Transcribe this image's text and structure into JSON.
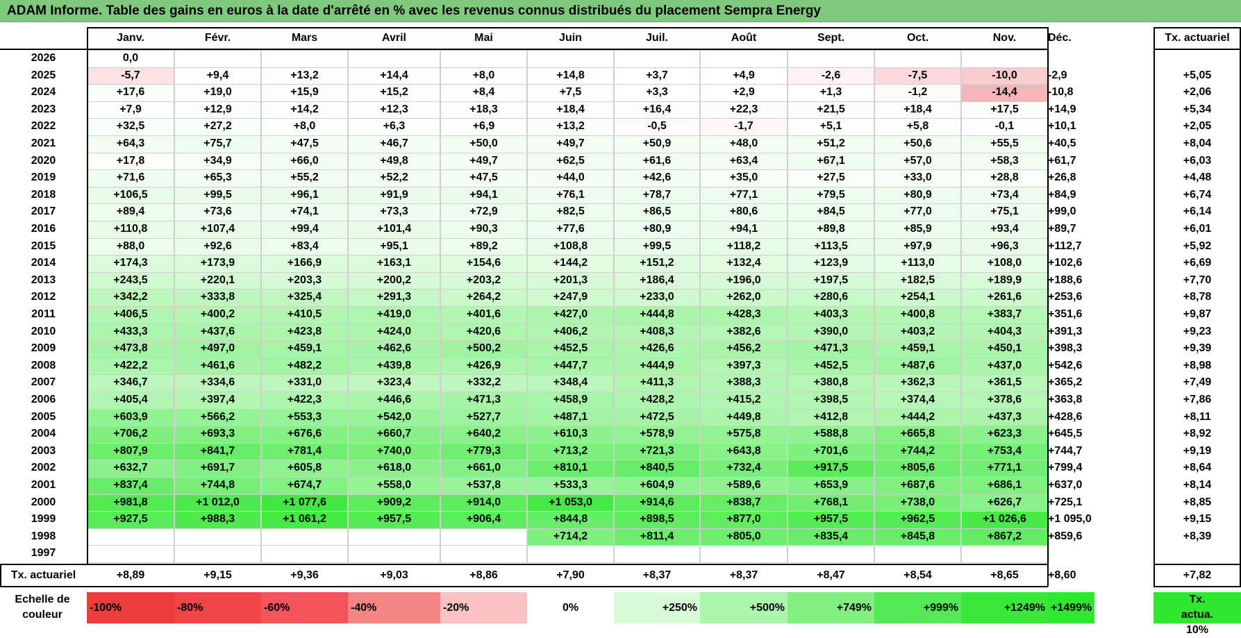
{
  "title": "ADAM Informe. Table des gains en euros à la date d'arrêté en % avec les revenus connus distribués du placement Sempra Energy",
  "chart_data": {
    "type": "heatmap",
    "title": "ADAM Informe. Table des gains en euros à la date d'arrêté en % avec les revenus connus distribués du placement Sempra Energy",
    "columns": [
      "Janv.",
      "Févr.",
      "Mars",
      "Avril",
      "Mai",
      "Juin",
      "Juil.",
      "Août",
      "Sept.",
      "Oct.",
      "Nov.",
      "Déc."
    ],
    "rate_header": "Tx. actuariel",
    "rows": [
      {
        "year": "2026",
        "cells": [
          "0,0",
          "",
          "",
          "",
          "",
          "",
          "",
          "",
          "",
          "",
          "",
          ""
        ],
        "rate": ""
      },
      {
        "year": "2025",
        "cells": [
          "-5,7",
          "+9,4",
          "+13,2",
          "+14,4",
          "+8,0",
          "+14,8",
          "+3,7",
          "+4,9",
          "-2,6",
          "-7,5",
          "-10,0",
          "-2,9"
        ],
        "rate": "+5,05"
      },
      {
        "year": "2024",
        "cells": [
          "+17,6",
          "+19,0",
          "+15,9",
          "+15,2",
          "+8,4",
          "+7,5",
          "+3,3",
          "+2,9",
          "+1,3",
          "-1,2",
          "-14,4",
          "-10,8"
        ],
        "rate": "+2,06"
      },
      {
        "year": "2023",
        "cells": [
          "+7,9",
          "+12,9",
          "+14,2",
          "+12,3",
          "+18,3",
          "+18,4",
          "+16,4",
          "+22,3",
          "+21,5",
          "+18,4",
          "+17,5",
          "+14,9"
        ],
        "rate": "+5,34"
      },
      {
        "year": "2022",
        "cells": [
          "+32,5",
          "+27,2",
          "+8,0",
          "+6,3",
          "+6,9",
          "+13,2",
          "-0,5",
          "-1,7",
          "+5,1",
          "+5,8",
          "-0,1",
          "+10,1"
        ],
        "rate": "+2,05"
      },
      {
        "year": "2021",
        "cells": [
          "+64,3",
          "+75,7",
          "+47,5",
          "+46,7",
          "+50,0",
          "+49,7",
          "+50,9",
          "+48,0",
          "+51,2",
          "+50,6",
          "+55,5",
          "+40,5"
        ],
        "rate": "+8,04"
      },
      {
        "year": "2020",
        "cells": [
          "+17,8",
          "+34,9",
          "+66,0",
          "+49,8",
          "+49,7",
          "+62,5",
          "+61,6",
          "+63,4",
          "+67,1",
          "+57,0",
          "+58,3",
          "+61,7"
        ],
        "rate": "+6,03"
      },
      {
        "year": "2019",
        "cells": [
          "+71,6",
          "+65,3",
          "+55,2",
          "+52,2",
          "+47,5",
          "+44,0",
          "+42,6",
          "+35,0",
          "+27,5",
          "+33,0",
          "+28,8",
          "+26,8"
        ],
        "rate": "+4,48"
      },
      {
        "year": "2018",
        "cells": [
          "+106,5",
          "+99,5",
          "+96,1",
          "+91,9",
          "+94,1",
          "+76,1",
          "+78,7",
          "+77,1",
          "+79,5",
          "+80,9",
          "+73,4",
          "+84,9"
        ],
        "rate": "+6,74"
      },
      {
        "year": "2017",
        "cells": [
          "+89,4",
          "+73,6",
          "+74,1",
          "+73,3",
          "+72,9",
          "+82,5",
          "+86,5",
          "+80,6",
          "+84,5",
          "+77,0",
          "+75,1",
          "+99,0"
        ],
        "rate": "+6,14"
      },
      {
        "year": "2016",
        "cells": [
          "+110,8",
          "+107,4",
          "+99,4",
          "+101,4",
          "+90,3",
          "+77,6",
          "+80,9",
          "+94,1",
          "+89,8",
          "+85,9",
          "+93,4",
          "+89,7"
        ],
        "rate": "+6,01"
      },
      {
        "year": "2015",
        "cells": [
          "+88,0",
          "+92,6",
          "+83,4",
          "+95,1",
          "+89,2",
          "+108,8",
          "+99,5",
          "+118,2",
          "+113,5",
          "+97,9",
          "+96,3",
          "+112,7"
        ],
        "rate": "+5,92"
      },
      {
        "year": "2014",
        "cells": [
          "+174,3",
          "+173,9",
          "+166,9",
          "+163,1",
          "+154,6",
          "+144,2",
          "+151,2",
          "+132,4",
          "+123,9",
          "+113,0",
          "+108,0",
          "+102,6"
        ],
        "rate": "+6,69"
      },
      {
        "year": "2013",
        "cells": [
          "+243,5",
          "+220,1",
          "+203,3",
          "+200,2",
          "+203,2",
          "+201,3",
          "+186,4",
          "+196,0",
          "+197,5",
          "+182,5",
          "+189,9",
          "+188,6"
        ],
        "rate": "+7,70"
      },
      {
        "year": "2012",
        "cells": [
          "+342,2",
          "+333,8",
          "+325,4",
          "+291,3",
          "+264,2",
          "+247,9",
          "+233,0",
          "+262,0",
          "+280,6",
          "+254,1",
          "+261,6",
          "+253,6"
        ],
        "rate": "+8,78"
      },
      {
        "year": "2011",
        "cells": [
          "+406,5",
          "+400,2",
          "+410,5",
          "+419,0",
          "+401,6",
          "+427,0",
          "+444,8",
          "+428,3",
          "+403,3",
          "+400,8",
          "+383,7",
          "+351,6"
        ],
        "rate": "+9,87"
      },
      {
        "year": "2010",
        "cells": [
          "+433,3",
          "+437,6",
          "+423,8",
          "+424,0",
          "+420,6",
          "+406,2",
          "+408,3",
          "+382,6",
          "+390,0",
          "+403,2",
          "+404,3",
          "+391,3"
        ],
        "rate": "+9,23"
      },
      {
        "year": "2009",
        "cells": [
          "+473,8",
          "+497,0",
          "+459,1",
          "+462,6",
          "+500,2",
          "+452,5",
          "+426,6",
          "+456,2",
          "+471,3",
          "+459,1",
          "+450,1",
          "+398,3"
        ],
        "rate": "+9,39"
      },
      {
        "year": "2008",
        "cells": [
          "+422,2",
          "+461,6",
          "+482,2",
          "+439,8",
          "+426,9",
          "+447,7",
          "+444,9",
          "+397,3",
          "+452,5",
          "+487,6",
          "+437,0",
          "+542,6"
        ],
        "rate": "+8,98"
      },
      {
        "year": "2007",
        "cells": [
          "+346,7",
          "+334,6",
          "+331,0",
          "+323,4",
          "+332,2",
          "+348,4",
          "+411,3",
          "+388,3",
          "+380,8",
          "+362,3",
          "+361,5",
          "+365,2"
        ],
        "rate": "+7,49"
      },
      {
        "year": "2006",
        "cells": [
          "+405,4",
          "+397,4",
          "+422,3",
          "+446,6",
          "+471,3",
          "+458,9",
          "+428,2",
          "+415,2",
          "+398,5",
          "+374,4",
          "+378,6",
          "+363,8"
        ],
        "rate": "+7,86"
      },
      {
        "year": "2005",
        "cells": [
          "+603,9",
          "+566,2",
          "+553,3",
          "+542,0",
          "+527,7",
          "+487,1",
          "+472,5",
          "+449,8",
          "+412,8",
          "+444,2",
          "+437,3",
          "+428,6"
        ],
        "rate": "+8,11"
      },
      {
        "year": "2004",
        "cells": [
          "+706,2",
          "+693,3",
          "+676,6",
          "+660,7",
          "+640,2",
          "+610,3",
          "+578,9",
          "+575,8",
          "+588,8",
          "+665,8",
          "+623,3",
          "+645,5"
        ],
        "rate": "+8,92"
      },
      {
        "year": "2003",
        "cells": [
          "+807,9",
          "+841,7",
          "+781,4",
          "+740,0",
          "+779,3",
          "+713,2",
          "+721,3",
          "+643,8",
          "+701,6",
          "+744,2",
          "+753,4",
          "+744,7"
        ],
        "rate": "+9,19"
      },
      {
        "year": "2002",
        "cells": [
          "+632,7",
          "+691,7",
          "+605,8",
          "+618,0",
          "+661,0",
          "+810,1",
          "+840,5",
          "+732,4",
          "+917,5",
          "+805,6",
          "+771,1",
          "+799,4"
        ],
        "rate": "+8,64"
      },
      {
        "year": "2001",
        "cells": [
          "+837,4",
          "+744,8",
          "+674,7",
          "+558,0",
          "+537,8",
          "+533,3",
          "+604,9",
          "+589,6",
          "+653,9",
          "+687,6",
          "+686,1",
          "+637,0"
        ],
        "rate": "+8,14"
      },
      {
        "year": "2000",
        "cells": [
          "+981,8",
          "+1 012,0",
          "+1 077,6",
          "+909,2",
          "+914,0",
          "+1 053,0",
          "+914,6",
          "+838,7",
          "+768,1",
          "+738,0",
          "+626,7",
          "+725,1"
        ],
        "rate": "+8,85"
      },
      {
        "year": "1999",
        "cells": [
          "+927,5",
          "+988,3",
          "+1 061,2",
          "+957,5",
          "+906,4",
          "+844,8",
          "+898,5",
          "+877,0",
          "+957,5",
          "+962,5",
          "+1 026,6",
          "+1 095,0"
        ],
        "rate": "+9,15"
      },
      {
        "year": "1998",
        "cells": [
          "",
          "",
          "",
          "",
          "",
          "+714,2",
          "+811,4",
          "+805,0",
          "+835,4",
          "+845,8",
          "+867,2",
          "+859,6"
        ],
        "rate": "+8,39"
      },
      {
        "year": "1997",
        "cells": [
          "",
          "",
          "",
          "",
          "",
          "",
          "",
          "",
          "",
          "",
          "",
          ""
        ],
        "rate": ""
      }
    ],
    "footer": {
      "label": "Tx. actuariel",
      "values": [
        "+8,89",
        "+9,15",
        "+9,36",
        "+9,03",
        "+8,86",
        "+7,90",
        "+8,37",
        "+8,37",
        "+8,47",
        "+8,54",
        "+8,65",
        "+8,60"
      ],
      "total": "+7,82"
    },
    "color_scale": {
      "label": "Echelle de couleur",
      "stops": [
        {
          "label": "-100%",
          "color": "#ee3b3b"
        },
        {
          "label": "-80%",
          "color": "#f04545"
        },
        {
          "label": "-60%",
          "color": "#f2545a"
        },
        {
          "label": "-40%",
          "color": "#f58585"
        },
        {
          "label": "-20%",
          "color": "#fbc2c4"
        },
        {
          "label": "0%",
          "color": "#ffffff"
        },
        {
          "label": "+250%",
          "color": "#d6fbd6"
        },
        {
          "label": "+500%",
          "color": "#acf5ac"
        },
        {
          "label": "+749%",
          "color": "#80f080"
        },
        {
          "label": "+999%",
          "color": "#54ea54"
        },
        {
          "label": "+1249%",
          "color": "#3ae83a"
        },
        {
          "label": "+1499%",
          "color": "#2ee82e"
        }
      ],
      "rate_legend": "Tx. actua. 10%",
      "rate_legend_color": "#2ee82e"
    }
  }
}
